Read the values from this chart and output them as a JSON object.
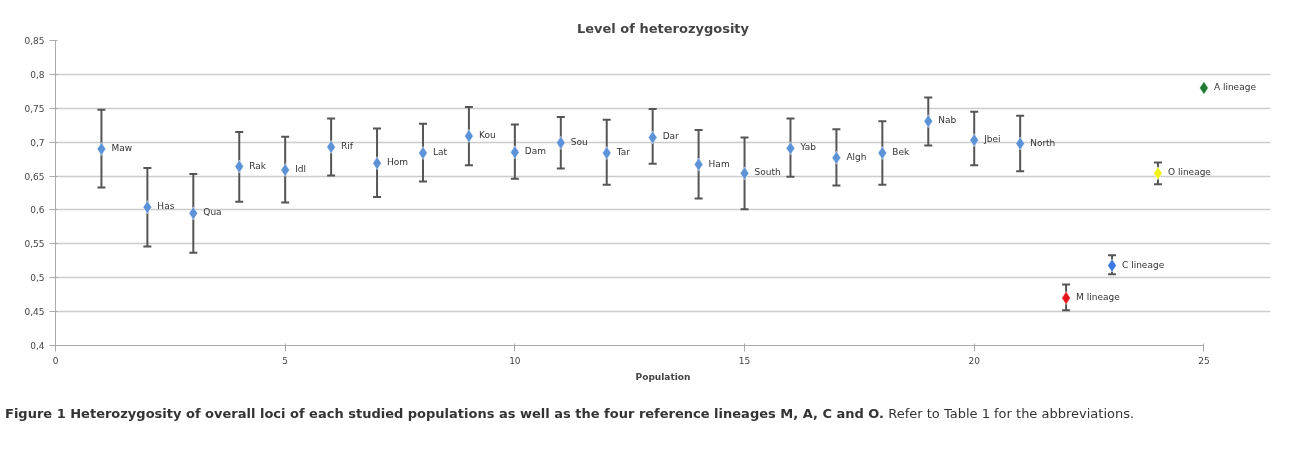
{
  "chart_data": {
    "type": "scatter",
    "title": "Level of heterozygosity",
    "xlabel": "Population",
    "x": [
      1,
      2,
      3,
      4,
      5,
      6,
      7,
      8,
      9,
      10,
      11,
      12,
      13,
      14,
      15,
      16,
      17,
      18,
      19,
      20,
      21,
      22,
      23,
      24,
      25
    ],
    "values": [
      0.69,
      0.604,
      0.595,
      0.664,
      0.659,
      0.693,
      0.669,
      0.684,
      0.709,
      0.685,
      0.699,
      0.684,
      0.707,
      0.667,
      0.654,
      0.691,
      0.677,
      0.684,
      0.731,
      0.703,
      0.698,
      0.47,
      0.518,
      0.654,
      0.78
    ],
    "errors": [
      [
        0.633,
        0.748
      ],
      [
        0.546,
        0.662
      ],
      [
        0.537,
        0.653
      ],
      [
        0.612,
        0.715
      ],
      [
        0.611,
        0.708
      ],
      [
        0.651,
        0.735
      ],
      [
        0.619,
        0.72
      ],
      [
        0.642,
        0.727
      ],
      [
        0.666,
        0.752
      ],
      [
        0.646,
        0.726
      ],
      [
        0.661,
        0.737
      ],
      [
        0.637,
        0.733
      ],
      [
        0.668,
        0.749
      ],
      [
        0.617,
        0.718
      ],
      [
        0.601,
        0.707
      ],
      [
        0.649,
        0.735
      ],
      [
        0.636,
        0.719
      ],
      [
        0.637,
        0.731
      ],
      [
        0.695,
        0.766
      ],
      [
        0.666,
        0.745
      ],
      [
        0.657,
        0.739
      ],
      [
        0.452,
        0.49
      ],
      [
        0.505,
        0.533
      ],
      [
        0.638,
        0.67
      ],
      null
    ],
    "colors": [
      "#5b92d8",
      "#5b92d8",
      "#5b92d8",
      "#5b92d8",
      "#5b92d8",
      "#5b92d8",
      "#5b92d8",
      "#5b92d8",
      "#5b92d8",
      "#5b92d8",
      "#5b92d8",
      "#5b92d8",
      "#5b92d8",
      "#5b92d8",
      "#5b92d8",
      "#5b92d8",
      "#5b92d8",
      "#5b92d8",
      "#5b92d8",
      "#5b92d8",
      "#5b92d8",
      "#e8141c",
      "#3a78e6",
      "#f2f21a",
      "#1e7a2e"
    ],
    "marker": "diamond",
    "grid": "y",
    "xlim": [
      0,
      25
    ],
    "xticks": [
      0,
      5,
      10,
      15,
      20,
      25
    ],
    "ylim": [
      0.4,
      0.85
    ],
    "yticks": [
      {
        "value": 0.4,
        "label": "0,4"
      },
      {
        "value": 0.45,
        "label": "0,45"
      },
      {
        "value": 0.5,
        "label": "0,5"
      },
      {
        "value": 0.55,
        "label": "0,55"
      },
      {
        "value": 0.6,
        "label": "0,6"
      },
      {
        "value": 0.65,
        "label": "0,65"
      },
      {
        "value": 0.7,
        "label": "0,7"
      },
      {
        "value": 0.75,
        "label": "0,75"
      },
      {
        "value": 0.8,
        "label": "0,8"
      },
      {
        "value": 0.85,
        "label": "0,85"
      }
    ],
    "annotations": [
      {
        "text": "Maw",
        "x": 1,
        "y": 0.69
      },
      {
        "text": "Has",
        "x": 2,
        "y": 0.604
      },
      {
        "text": "Qua",
        "x": 3,
        "y": 0.595
      },
      {
        "text": "Rak",
        "x": 4,
        "y": 0.664
      },
      {
        "text": "Idl",
        "x": 5,
        "y": 0.659
      },
      {
        "text": "Rif",
        "x": 6,
        "y": 0.693
      },
      {
        "text": "Hom",
        "x": 7,
        "y": 0.669
      },
      {
        "text": "Lat",
        "x": 8,
        "y": 0.684
      },
      {
        "text": "Kou",
        "x": 9,
        "y": 0.709
      },
      {
        "text": "Dam",
        "x": 10,
        "y": 0.685
      },
      {
        "text": "Sou",
        "x": 11,
        "y": 0.699
      },
      {
        "text": "Tar",
        "x": 12,
        "y": 0.684
      },
      {
        "text": "Dar",
        "x": 13,
        "y": 0.707
      },
      {
        "text": "Ham",
        "x": 14,
        "y": 0.667
      },
      {
        "text": "South",
        "x": 15,
        "y": 0.654
      },
      {
        "text": "Yab",
        "x": 16,
        "y": 0.691
      },
      {
        "text": "Algh",
        "x": 17,
        "y": 0.677
      },
      {
        "text": "Bek",
        "x": 18,
        "y": 0.684
      },
      {
        "text": "Nab",
        "x": 19,
        "y": 0.731
      },
      {
        "text": "Jbei",
        "x": 20,
        "y": 0.703
      },
      {
        "text": "North",
        "x": 21,
        "y": 0.698
      },
      {
        "text": "M lineage",
        "x": 22,
        "y": 0.47
      },
      {
        "text": "C lineage",
        "x": 23,
        "y": 0.518
      },
      {
        "text": "O lineage",
        "x": 24,
        "y": 0.654
      },
      {
        "text": "A lineage",
        "x": 25,
        "y": 0.78
      },
      "Figure 1 Heterozygosity of overall loci of each studied populations as well as the four reference lineages M, A, C and O.",
      "Refer to Table 1 for the abbreviations."
    ]
  }
}
